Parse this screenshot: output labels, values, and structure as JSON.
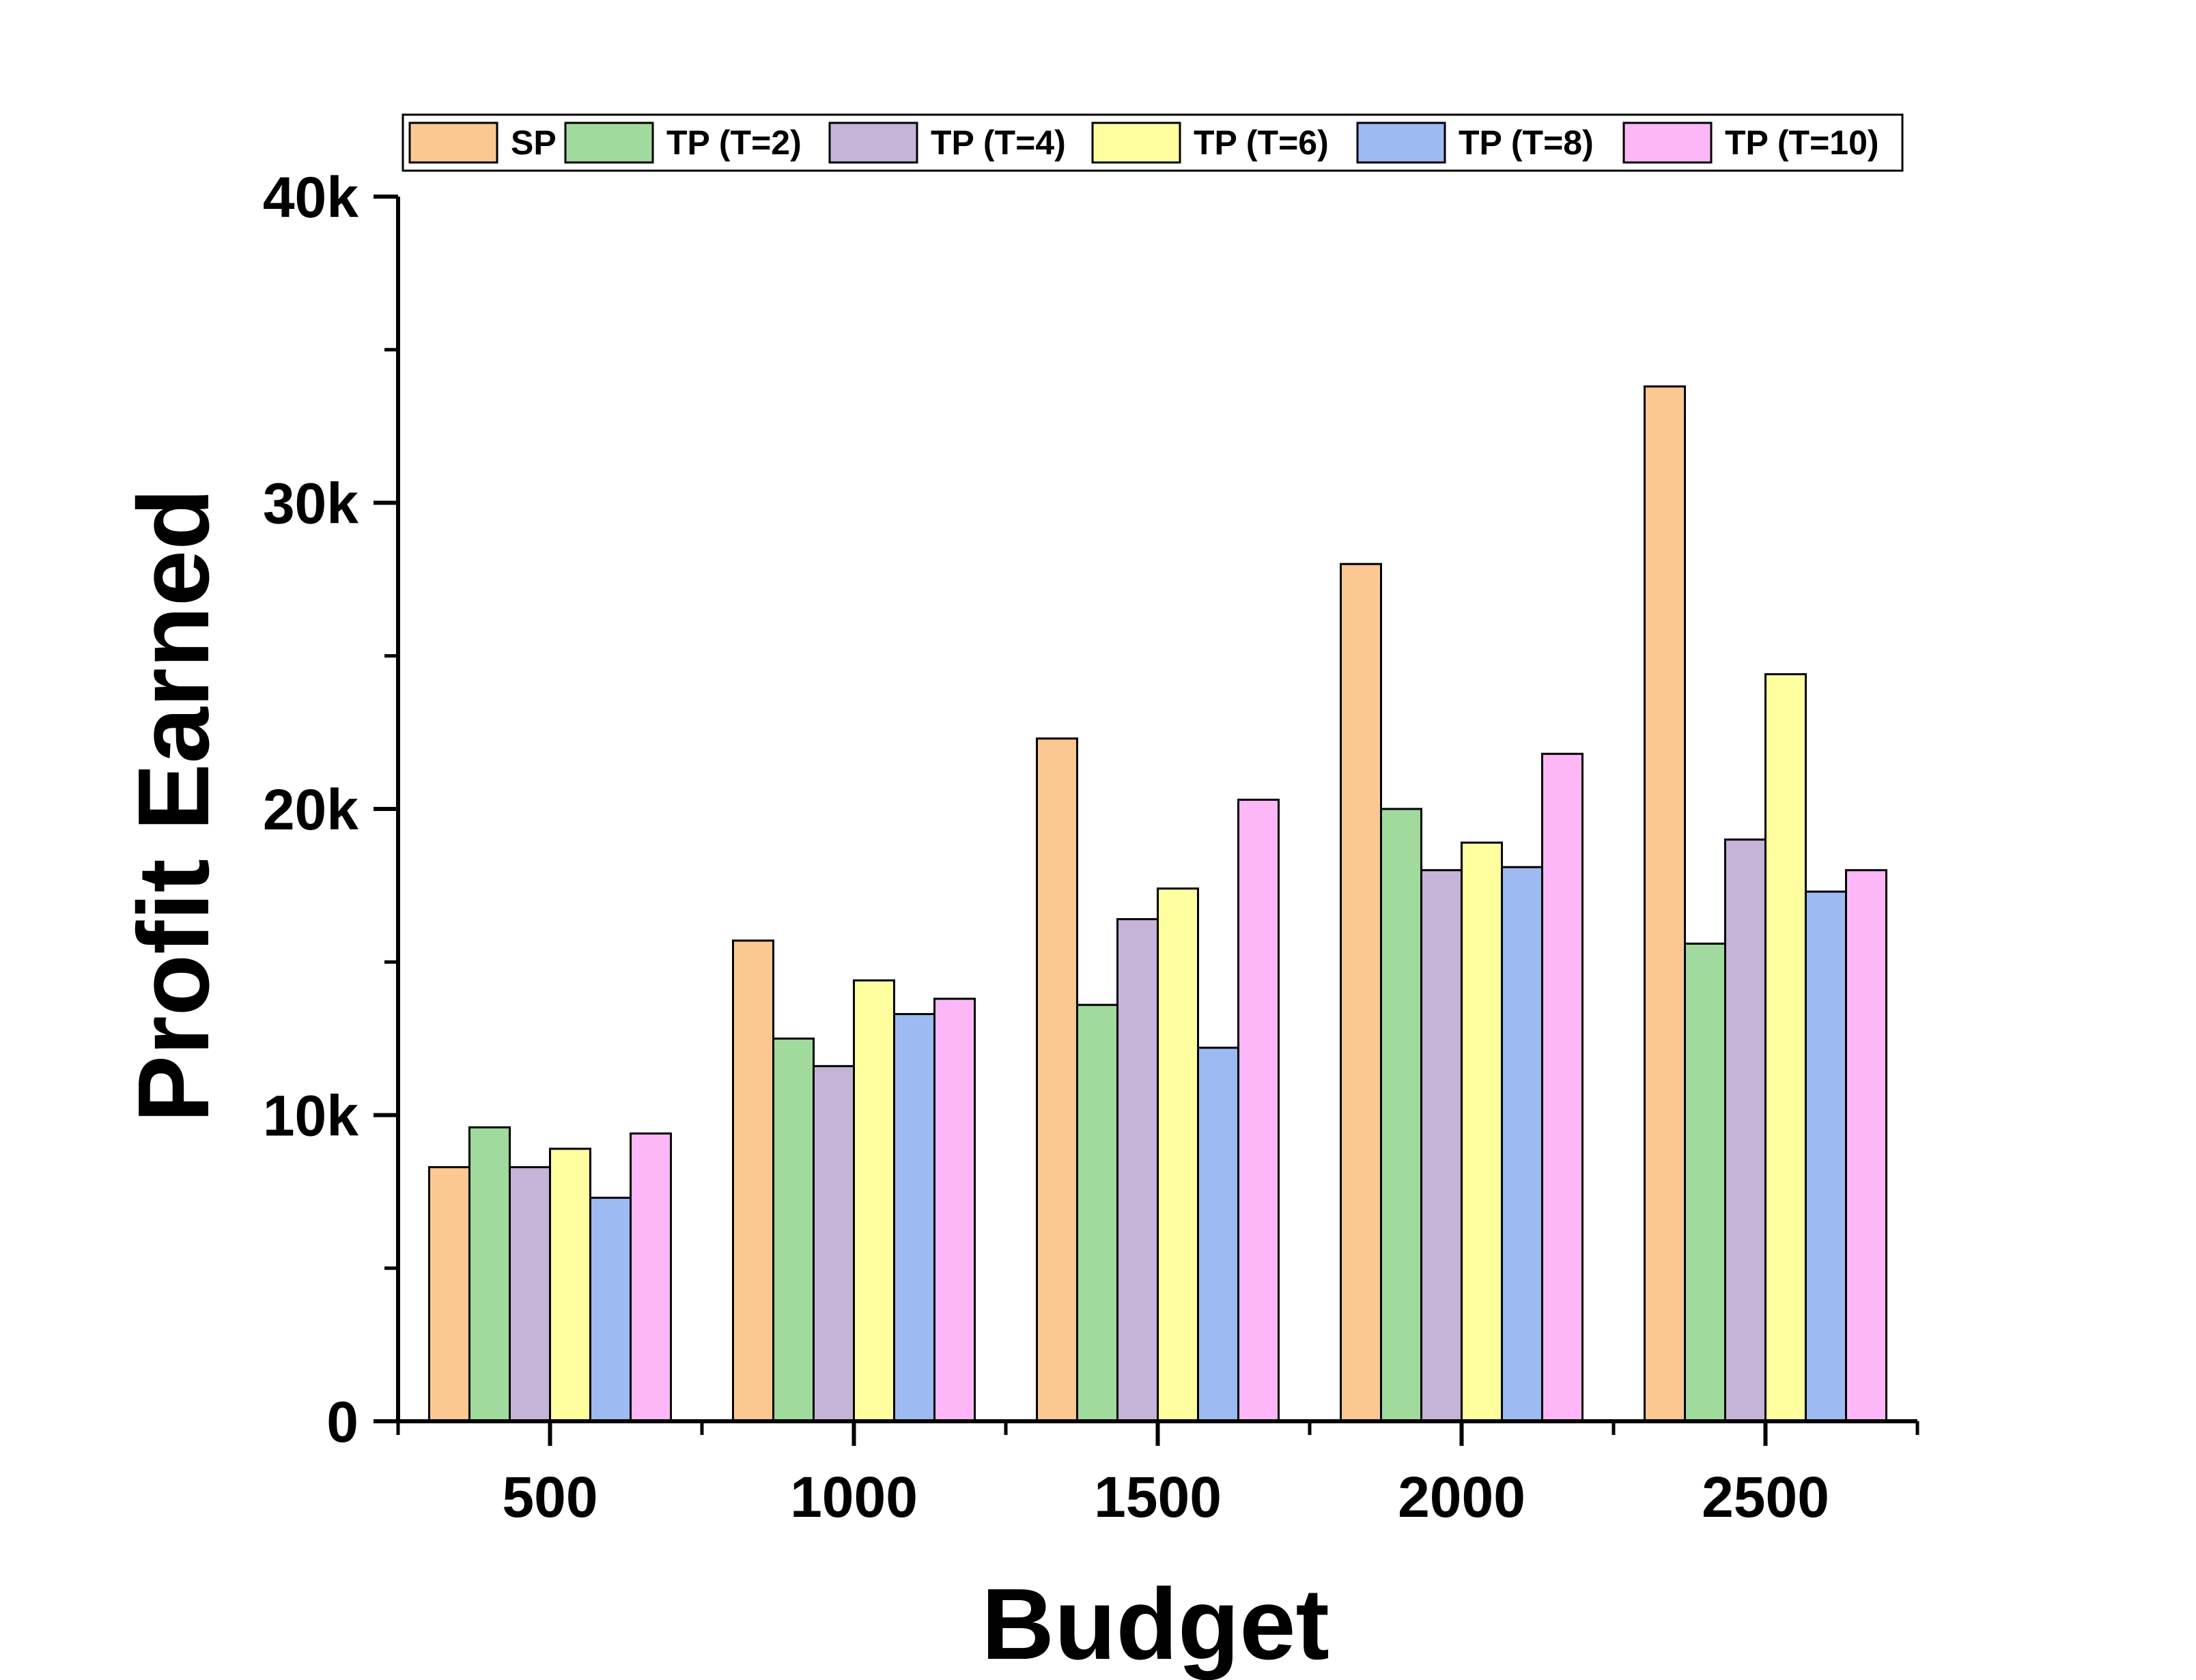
{
  "chart_data": {
    "type": "bar",
    "title": "",
    "xlabel": "Budget",
    "ylabel": "Profit Earned",
    "categories": [
      "500",
      "1000",
      "1500",
      "2000",
      "2500"
    ],
    "ylim": [
      0,
      40000
    ],
    "yticks": [
      {
        "value": 0,
        "label": "0"
      },
      {
        "value": 10000,
        "label": "10k"
      },
      {
        "value": 20000,
        "label": "20k"
      },
      {
        "value": 30000,
        "label": "30k"
      },
      {
        "value": 40000,
        "label": "40k"
      }
    ],
    "grid": false,
    "legend_position": "top",
    "series": [
      {
        "name": "SP",
        "color": "#FCC891",
        "values": [
          8300,
          15700,
          22300,
          28000,
          33800
        ]
      },
      {
        "name": "TP (T=2)",
        "color": "#A0DA9C",
        "values": [
          9600,
          12500,
          13600,
          20000,
          15600
        ]
      },
      {
        "name": "TP (T=4)",
        "color": "#C5B4D8",
        "values": [
          8300,
          11600,
          16400,
          18000,
          19000
        ]
      },
      {
        "name": "TP (T=6)",
        "color": "#FFFFA0",
        "values": [
          8900,
          14400,
          17400,
          18900,
          24400
        ]
      },
      {
        "name": "TP (T=8)",
        "color": "#9EBAF2",
        "values": [
          7300,
          13300,
          12200,
          18100,
          17300
        ]
      },
      {
        "name": "TP (T=10)",
        "color": "#FDB7F7",
        "values": [
          9400,
          13800,
          20300,
          21800,
          18000
        ]
      }
    ]
  }
}
